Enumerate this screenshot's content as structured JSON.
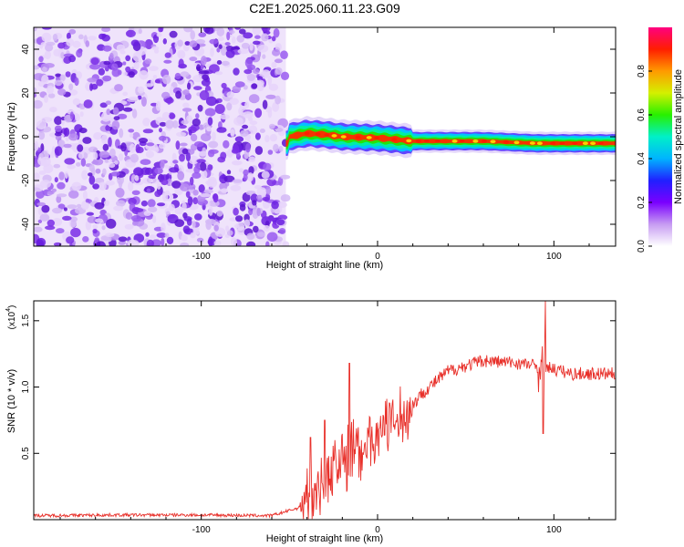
{
  "title": "C2E1.2025.060.11.23.G09",
  "colors": {
    "spectrogram_noise": "#6a1ee0",
    "snr_line": "#e8302a"
  },
  "chart_data": [
    {
      "type": "heatmap",
      "xlabel": "Height of straight line (km)",
      "ylabel": "Frequency (Hz)",
      "xlim": [
        -195,
        135
      ],
      "ylim": [
        -50,
        50
      ],
      "xticks": [
        -100,
        0,
        100
      ],
      "yticks": [
        -40,
        -20,
        0,
        20,
        40
      ],
      "colorbar": {
        "label": "Normalized spectral amplitude",
        "range": [
          0,
          1
        ],
        "ticks": [
          "0.0",
          "0.2",
          "0.4",
          "0.6",
          "0.8"
        ],
        "stops": [
          "#ffffff",
          "#c79cf2",
          "#7a00ff",
          "#2020ff",
          "#00b4ff",
          "#00f0c8",
          "#28f000",
          "#d4f000",
          "#ff9a00",
          "#ff1e00",
          "#ff0080"
        ]
      },
      "noise_region_x": [
        -195,
        -52
      ],
      "signal_ridge": [
        {
          "x": -50,
          "y": 0.0
        },
        {
          "x": -40,
          "y": 1.5
        },
        {
          "x": -30,
          "y": 1.0
        },
        {
          "x": -20,
          "y": 0.0
        },
        {
          "x": 0,
          "y": -0.5
        },
        {
          "x": 20,
          "y": -2.0
        },
        {
          "x": 60,
          "y": -2.0
        },
        {
          "x": 90,
          "y": -3.0
        },
        {
          "x": 135,
          "y": -3.0
        }
      ]
    },
    {
      "type": "line",
      "xlabel": "Height of straight line (km)",
      "ylabel": "SNR (10 * v/v)",
      "multiplier": "(x10",
      "multiplier_exp": "4",
      "multiplier_close": ")",
      "xlim": [
        -195,
        135
      ],
      "ylim": [
        0,
        1.65
      ],
      "xticks": [
        -100,
        0,
        100
      ],
      "yticks": [
        "0.5",
        "1.0",
        "1.5"
      ],
      "series": [
        {
          "values_trend": [
            {
              "x": -195,
              "y": 0.03
            },
            {
              "x": -150,
              "y": 0.035
            },
            {
              "x": -100,
              "y": 0.035
            },
            {
              "x": -60,
              "y": 0.03
            },
            {
              "x": -42,
              "y": 0.1
            },
            {
              "x": -35,
              "y": 0.25
            },
            {
              "x": -25,
              "y": 0.4
            },
            {
              "x": -15,
              "y": 0.5
            },
            {
              "x": 0,
              "y": 0.65
            },
            {
              "x": 15,
              "y": 0.78
            },
            {
              "x": 25,
              "y": 0.95
            },
            {
              "x": 40,
              "y": 1.12
            },
            {
              "x": 60,
              "y": 1.2
            },
            {
              "x": 80,
              "y": 1.18
            },
            {
              "x": 95,
              "y": 1.15
            },
            {
              "x": 110,
              "y": 1.1
            },
            {
              "x": 135,
              "y": 1.1
            }
          ],
          "spikes": [
            {
              "x": -38,
              "y": 0.62
            },
            {
              "x": -30,
              "y": 0.75
            },
            {
              "x": -16,
              "y": 1.18
            },
            {
              "x": 95,
              "y": 1.65
            },
            {
              "x": 94,
              "y": 0.65
            }
          ]
        }
      ]
    }
  ]
}
